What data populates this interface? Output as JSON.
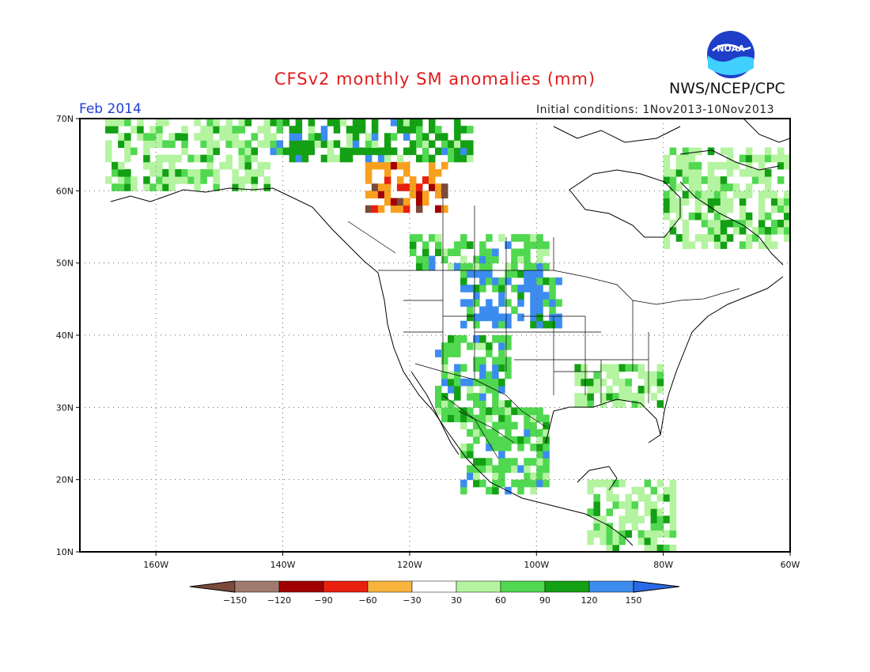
{
  "title": "CFSv2 monthly SM anomalies (mm)",
  "agency": "NWS/NCEP/CPC",
  "logo_text": "NOAA",
  "valid_month": "Feb 2014",
  "initial_conditions": "Initial conditions: 1Nov2013-10Nov2013",
  "map": {
    "lon_range": [
      -172,
      -60
    ],
    "lat_range": [
      10,
      70
    ],
    "lat_labels": [
      "10N",
      "20N",
      "30N",
      "40N",
      "50N",
      "60N",
      "70N"
    ],
    "lon_labels": [
      "160W",
      "140W",
      "120W",
      "100W",
      "80W",
      "60W"
    ],
    "grid": "dotted"
  },
  "colorbar": {
    "labels": [
      "-150",
      "-120",
      "-90",
      "-60",
      "-30",
      "30",
      "60",
      "90",
      "120",
      "150"
    ],
    "colors": [
      "#7a4a3a",
      "#a07a6e",
      "#a00000",
      "#e8200e",
      "#f8a01e",
      "#f8b43c",
      "#ffffff",
      "#b4f4a0",
      "#50d850",
      "#14a014",
      "#3c8cf0",
      "#2a6ae6"
    ]
  },
  "anomaly_regions": [
    {
      "name": "n-plains-wet",
      "lon": [
        -112,
        -96
      ],
      "lat": [
        41,
        49
      ],
      "color": "#3c8cf0"
    },
    {
      "name": "yukon-dry",
      "lon": [
        -127,
        -114
      ],
      "lat": [
        57,
        64
      ],
      "color": "#f8a01e"
    },
    {
      "name": "canada-prairie-wet",
      "lon": [
        -120,
        -98
      ],
      "lat": [
        49,
        54
      ],
      "color": "#50d850"
    },
    {
      "name": "sw-us-wet",
      "lon": [
        -116,
        -104
      ],
      "lat": [
        28,
        40
      ],
      "color": "#50d850"
    },
    {
      "name": "alaska-wet",
      "lon": [
        -168,
        -142
      ],
      "lat": [
        60,
        70
      ],
      "color": "#b4f4a0"
    },
    {
      "name": "nw-canada-wet",
      "lon": [
        -142,
        -110
      ],
      "lat": [
        64,
        70
      ],
      "color": "#14a014"
    },
    {
      "name": "mexico-wet",
      "lon": [
        -112,
        -98
      ],
      "lat": [
        18,
        30
      ],
      "color": "#50d850"
    },
    {
      "name": "eastern-canada-wet",
      "lon": [
        -80,
        -60
      ],
      "lat": [
        52,
        66
      ],
      "color": "#b4f4a0"
    },
    {
      "name": "se-us-mixed",
      "lon": [
        -94,
        -80
      ],
      "lat": [
        30,
        36
      ],
      "color": "#b4f4a0"
    },
    {
      "name": "central-america-wet",
      "lon": [
        -92,
        -78
      ],
      "lat": [
        10,
        20
      ],
      "color": "#b4f4a0"
    }
  ]
}
